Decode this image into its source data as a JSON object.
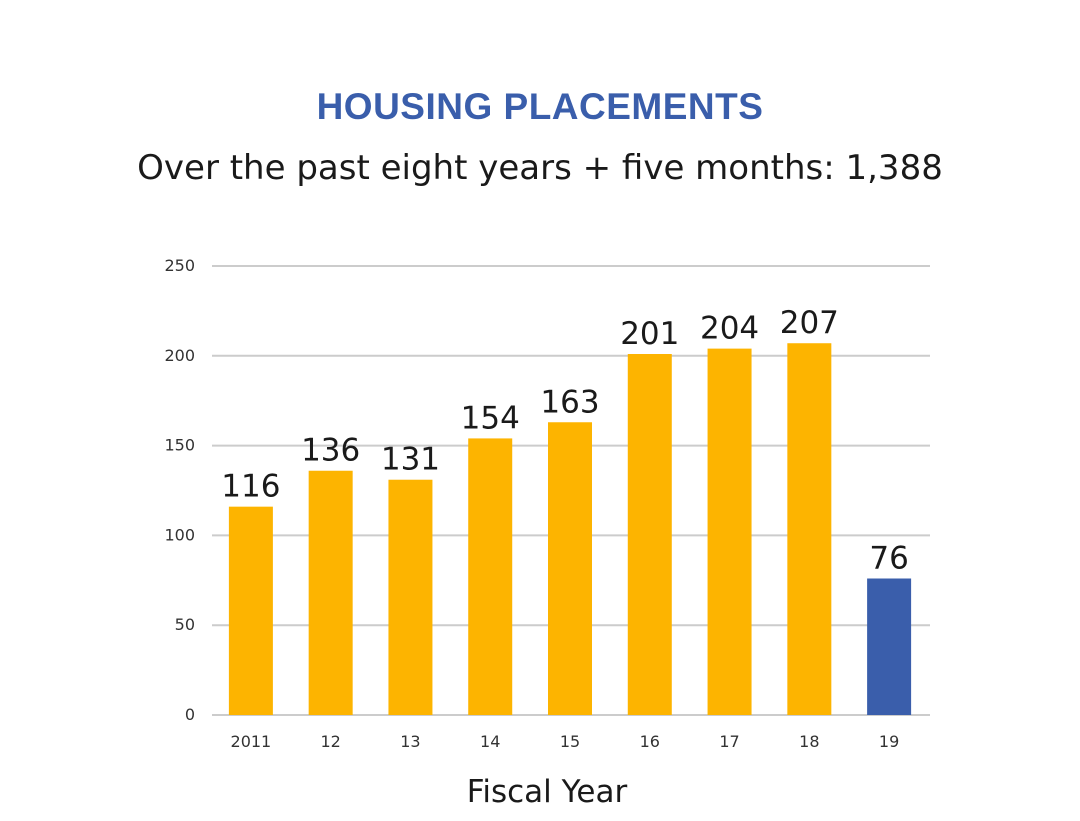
{
  "chart_data": {
    "type": "bar",
    "title": "HOUSING PLACEMENTS",
    "subtitle": "Over the past eight years + five months: 1,388",
    "xlabel": "Fiscal Year",
    "ylabel": "",
    "categories": [
      "2011",
      "12",
      "13",
      "14",
      "15",
      "16",
      "17",
      "18",
      "19"
    ],
    "values": [
      116,
      136,
      131,
      154,
      163,
      201,
      204,
      207,
      76
    ],
    "data_labels": [
      "116",
      "136",
      "131",
      "154",
      "163",
      "201",
      "204",
      "207",
      "76"
    ],
    "ylim": [
      0,
      250
    ],
    "yticks": [
      0,
      50,
      100,
      150,
      200,
      250
    ],
    "grid": true,
    "legend": "none",
    "colors": {
      "bar_default": "#fdb400",
      "bar_highlight": "#3a5eab",
      "title": "#3a5eab",
      "gridline": "#cccccc"
    },
    "highlight_index": 8
  }
}
